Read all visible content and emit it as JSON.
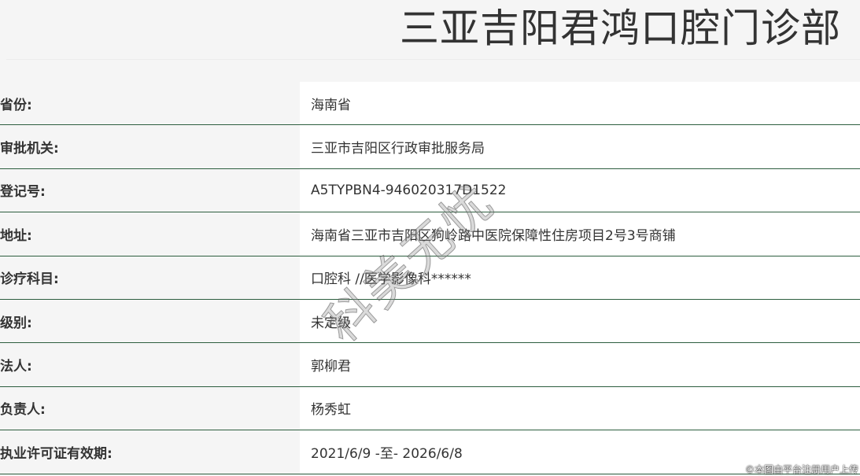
{
  "title": "三亚吉阳君鸿口腔门诊部",
  "rows": [
    {
      "label": "省份:",
      "value": "海南省"
    },
    {
      "label": "审批机关:",
      "value": "三亚市吉阳区行政审批服务局"
    },
    {
      "label": "登记号:",
      "value": "A5TYPBN4-946020317D1522"
    },
    {
      "label": "地址:",
      "value": "海南省三亚市吉阳区狗岭路中医院保障性住房项目2号3号商铺"
    },
    {
      "label": "诊疗科目:",
      "value": "口腔科 //医学影像科******"
    },
    {
      "label": "级别:",
      "value": "未定级"
    },
    {
      "label": "法人:",
      "value": "郭柳君"
    },
    {
      "label": "负责人:",
      "value": "杨秀虹"
    },
    {
      "label": "执业许可证有效期:",
      "value": "2021/6/9 -至- 2026/6/8"
    }
  ],
  "watermark": "科美无忧",
  "credit": "©本图由平台注册用户上传"
}
